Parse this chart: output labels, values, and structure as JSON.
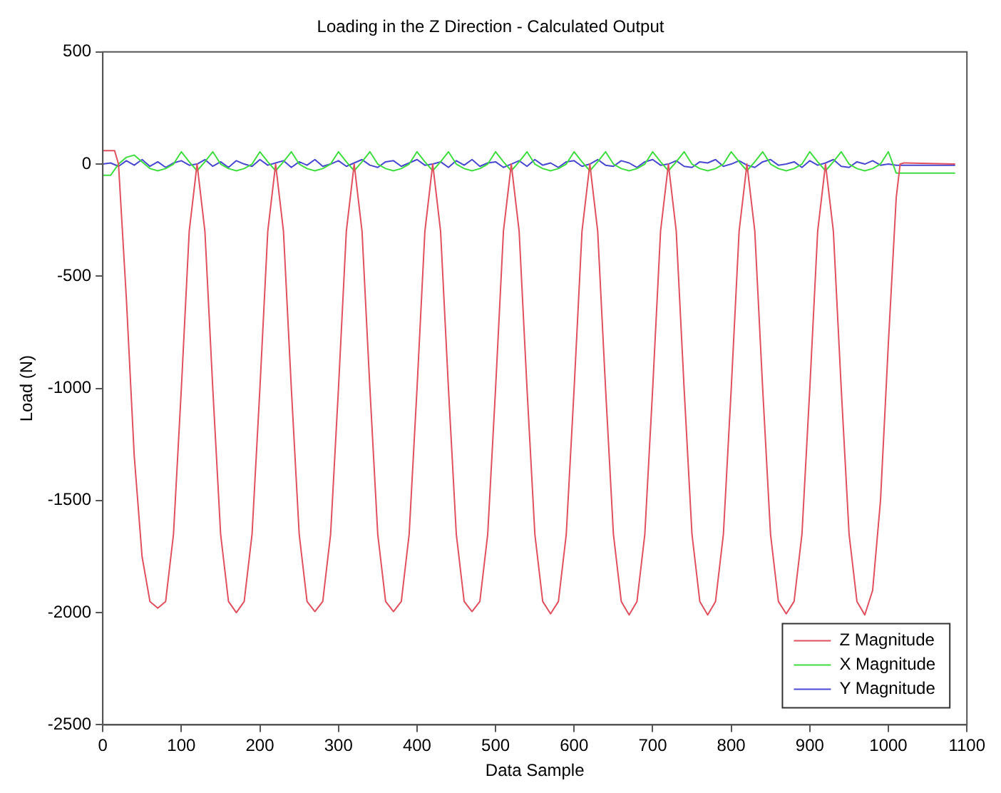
{
  "chart_data": {
    "type": "line",
    "title": "Loading in the Z Direction - Calculated Output",
    "xlabel": "Data Sample",
    "ylabel": "Load (N)",
    "xlim": [
      0,
      1100
    ],
    "xticks": [
      0,
      100,
      200,
      300,
      400,
      500,
      600,
      700,
      800,
      900,
      1000,
      1100
    ],
    "ylim": [
      -2500,
      500
    ],
    "yticks": [
      -2500,
      -2000,
      -1500,
      -1000,
      -500,
      0,
      500
    ],
    "grid": false,
    "legend": "bottom right",
    "marker": "none",
    "line_style": "solid",
    "series": [
      {
        "name": "Z Magnitude",
        "color": "#e0505f",
        "x": [
          0,
          15,
          20,
          30,
          40,
          50,
          60,
          70,
          80,
          90,
          100,
          110,
          120,
          130,
          140,
          150,
          160,
          170,
          180,
          190,
          200,
          210,
          220,
          230,
          240,
          250,
          260,
          270,
          280,
          290,
          300,
          310,
          320,
          330,
          340,
          350,
          360,
          370,
          380,
          390,
          400,
          410,
          420,
          430,
          440,
          450,
          460,
          470,
          480,
          490,
          500,
          510,
          520,
          530,
          540,
          550,
          560,
          570,
          580,
          590,
          600,
          610,
          620,
          630,
          640,
          650,
          660,
          670,
          680,
          690,
          700,
          710,
          720,
          730,
          740,
          750,
          760,
          770,
          780,
          790,
          800,
          810,
          820,
          830,
          840,
          850,
          860,
          870,
          880,
          890,
          900,
          910,
          920,
          930,
          940,
          950,
          960,
          970,
          980,
          990,
          1000,
          1010,
          1015,
          1020,
          1085
        ],
        "values": [
          60,
          60,
          0,
          -600,
          -1300,
          -1750,
          -1950,
          -1980,
          -1950,
          -1650,
          -1000,
          -300,
          0,
          -300,
          -1000,
          -1650,
          -1950,
          -2000,
          -1950,
          -1650,
          -1000,
          -300,
          0,
          -300,
          -1000,
          -1650,
          -1950,
          -1995,
          -1950,
          -1650,
          -1000,
          -300,
          0,
          -300,
          -1000,
          -1650,
          -1950,
          -1995,
          -1950,
          -1650,
          -1000,
          -300,
          0,
          -300,
          -1000,
          -1650,
          -1950,
          -1995,
          -1950,
          -1650,
          -1000,
          -300,
          0,
          -300,
          -1000,
          -1650,
          -1950,
          -2005,
          -1950,
          -1650,
          -1000,
          -300,
          0,
          -300,
          -1000,
          -1650,
          -1950,
          -2010,
          -1950,
          -1650,
          -1000,
          -300,
          0,
          -300,
          -1000,
          -1650,
          -1950,
          -2010,
          -1950,
          -1650,
          -1000,
          -300,
          0,
          -300,
          -1000,
          -1650,
          -1950,
          -2005,
          -1950,
          -1650,
          -1000,
          -300,
          0,
          -300,
          -1000,
          -1650,
          -1950,
          -2010,
          -1900,
          -1500,
          -800,
          -150,
          0,
          5,
          0
        ]
      },
      {
        "name": "X Magnitude",
        "color": "#40dd40",
        "x": [
          0,
          10,
          20,
          30,
          40,
          50,
          60,
          70,
          80,
          90,
          100,
          110,
          120,
          130,
          140,
          150,
          160,
          170,
          180,
          190,
          200,
          210,
          220,
          230,
          240,
          250,
          260,
          270,
          280,
          290,
          300,
          310,
          320,
          330,
          340,
          350,
          360,
          370,
          380,
          390,
          400,
          410,
          420,
          430,
          440,
          450,
          460,
          470,
          480,
          490,
          500,
          510,
          520,
          530,
          540,
          550,
          560,
          570,
          580,
          590,
          600,
          610,
          620,
          630,
          640,
          650,
          660,
          670,
          680,
          690,
          700,
          710,
          720,
          730,
          740,
          750,
          760,
          770,
          780,
          790,
          800,
          810,
          820,
          830,
          840,
          850,
          860,
          870,
          880,
          890,
          900,
          910,
          920,
          930,
          940,
          950,
          960,
          970,
          980,
          990,
          1000,
          1010,
          1085
        ],
        "values": [
          -50,
          -50,
          0,
          30,
          40,
          10,
          -20,
          -30,
          -20,
          0,
          55,
          10,
          -30,
          10,
          55,
          0,
          -20,
          -30,
          -20,
          0,
          55,
          10,
          -30,
          10,
          55,
          0,
          -20,
          -30,
          -20,
          0,
          55,
          10,
          -30,
          10,
          55,
          0,
          -20,
          -30,
          -20,
          0,
          55,
          10,
          -30,
          10,
          55,
          0,
          -20,
          -30,
          -20,
          0,
          55,
          10,
          -30,
          10,
          55,
          0,
          -20,
          -30,
          -20,
          0,
          55,
          10,
          -30,
          10,
          55,
          0,
          -20,
          -30,
          -20,
          0,
          55,
          10,
          -30,
          10,
          55,
          0,
          -20,
          -30,
          -20,
          0,
          55,
          10,
          -30,
          10,
          55,
          0,
          -20,
          -30,
          -20,
          0,
          55,
          10,
          -30,
          10,
          55,
          0,
          -20,
          -30,
          -20,
          0,
          55,
          -40,
          -40
        ]
      },
      {
        "name": "Y Magnitude",
        "color": "#4848d0",
        "x": [
          0,
          10,
          20,
          30,
          40,
          50,
          60,
          70,
          80,
          90,
          100,
          110,
          120,
          130,
          140,
          150,
          160,
          170,
          180,
          190,
          200,
          210,
          220,
          230,
          240,
          250,
          260,
          270,
          280,
          290,
          300,
          310,
          320,
          330,
          340,
          350,
          360,
          370,
          380,
          390,
          400,
          410,
          420,
          430,
          440,
          450,
          460,
          470,
          480,
          490,
          500,
          510,
          520,
          530,
          540,
          550,
          560,
          570,
          580,
          590,
          600,
          610,
          620,
          630,
          640,
          650,
          660,
          670,
          680,
          690,
          700,
          710,
          720,
          730,
          740,
          750,
          760,
          770,
          780,
          790,
          800,
          810,
          820,
          830,
          840,
          850,
          860,
          870,
          880,
          890,
          900,
          910,
          920,
          930,
          940,
          950,
          960,
          970,
          980,
          990,
          1000,
          1010,
          1085
        ],
        "values": [
          0,
          5,
          -10,
          15,
          -5,
          20,
          -10,
          10,
          -15,
          5,
          15,
          -5,
          0,
          20,
          -10,
          10,
          -15,
          15,
          0,
          -10,
          20,
          -5,
          5,
          15,
          -15,
          10,
          -5,
          20,
          -10,
          0,
          15,
          -10,
          5,
          20,
          -5,
          -15,
          10,
          15,
          -10,
          5,
          20,
          -5,
          0,
          10,
          -15,
          15,
          -5,
          20,
          -10,
          5,
          10,
          -15,
          0,
          15,
          -10,
          20,
          -5,
          5,
          -15,
          10,
          15,
          -10,
          0,
          20,
          -5,
          -10,
          15,
          5,
          -15,
          10,
          20,
          -5,
          0,
          15,
          -10,
          -15,
          10,
          5,
          20,
          -10,
          0,
          15,
          -5,
          -15,
          10,
          20,
          -5,
          0,
          10,
          -15,
          15,
          -5,
          5,
          20,
          -10,
          -15,
          10,
          0,
          15,
          -5,
          0,
          -5,
          -5
        ]
      }
    ]
  }
}
